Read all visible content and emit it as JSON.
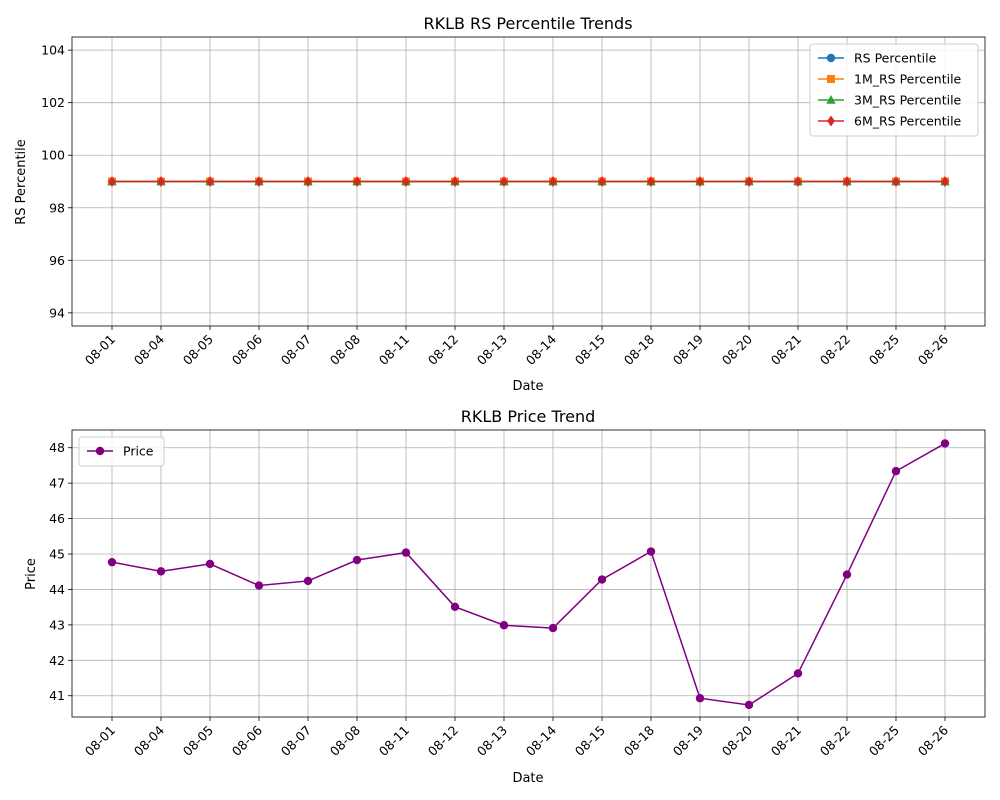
{
  "chart_data": [
    {
      "type": "line",
      "title": "RKLB RS Percentile Trends",
      "xlabel": "Date",
      "ylabel": "RS Percentile",
      "categories": [
        "08-01",
        "08-04",
        "08-05",
        "08-06",
        "08-07",
        "08-08",
        "08-11",
        "08-12",
        "08-13",
        "08-14",
        "08-15",
        "08-18",
        "08-19",
        "08-20",
        "08-21",
        "08-22",
        "08-25",
        "08-26"
      ],
      "ylim": [
        93.5,
        104.5
      ],
      "yticks": [
        94,
        96,
        98,
        100,
        102,
        104
      ],
      "grid": true,
      "legend": "top-right",
      "series": [
        {
          "name": "RS Percentile",
          "color": "#1f77b4",
          "marker": "circle",
          "values": [
            99,
            99,
            99,
            99,
            99,
            99,
            99,
            99,
            99,
            99,
            99,
            99,
            99,
            99,
            99,
            99,
            99,
            99
          ]
        },
        {
          "name": "1M_RS Percentile",
          "color": "#ff7f0e",
          "marker": "square",
          "values": [
            99,
            99,
            99,
            99,
            99,
            99,
            99,
            99,
            99,
            99,
            99,
            99,
            99,
            99,
            99,
            99,
            99,
            99
          ]
        },
        {
          "name": "3M_RS Percentile",
          "color": "#2ca02c",
          "marker": "triangle",
          "values": [
            99,
            99,
            99,
            99,
            99,
            99,
            99,
            99,
            99,
            99,
            99,
            99,
            99,
            99,
            99,
            99,
            99,
            99
          ]
        },
        {
          "name": "6M_RS Percentile",
          "color": "#d62728",
          "marker": "diamond",
          "values": [
            99,
            99,
            99,
            99,
            99,
            99,
            99,
            99,
            99,
            99,
            99,
            99,
            99,
            99,
            99,
            99,
            99,
            99
          ]
        }
      ]
    },
    {
      "type": "line",
      "title": "RKLB Price Trend",
      "xlabel": "Date",
      "ylabel": "Price",
      "categories": [
        "08-01",
        "08-04",
        "08-05",
        "08-06",
        "08-07",
        "08-08",
        "08-11",
        "08-12",
        "08-13",
        "08-14",
        "08-15",
        "08-18",
        "08-19",
        "08-20",
        "08-21",
        "08-22",
        "08-25",
        "08-26"
      ],
      "ylim": [
        40.4,
        48.5
      ],
      "yticks": [
        41,
        42,
        43,
        44,
        45,
        46,
        47,
        48
      ],
      "grid": true,
      "legend": "top-left",
      "series": [
        {
          "name": "Price",
          "color": "#800080",
          "marker": "circle",
          "values": [
            44.77,
            44.51,
            44.72,
            44.11,
            44.24,
            44.83,
            45.04,
            43.51,
            42.99,
            42.91,
            44.28,
            45.07,
            40.93,
            40.74,
            41.63,
            44.42,
            47.34,
            48.12
          ]
        }
      ]
    }
  ]
}
